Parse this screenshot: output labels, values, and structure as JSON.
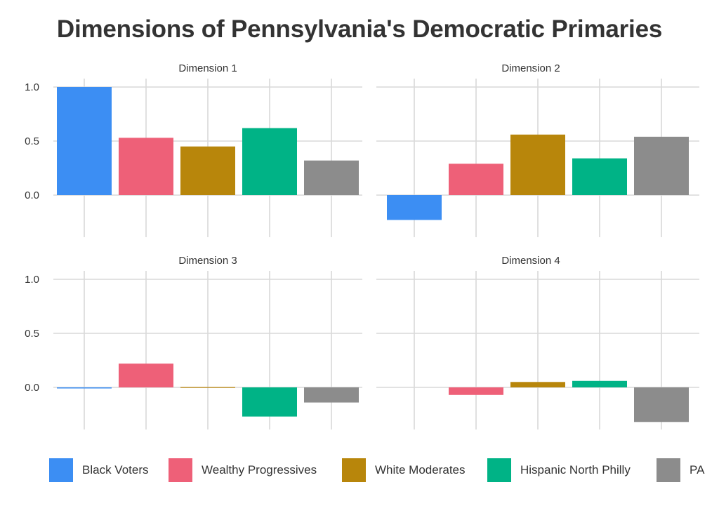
{
  "chart_data": {
    "type": "bar",
    "title": "Dimensions of Pennsylvania's Democratic Primaries",
    "xlabel": "",
    "ylabel": "",
    "ylim": [
      -0.39,
      1.0
    ],
    "yticks": [
      0.0,
      0.5,
      1.0
    ],
    "ytick_labels": [
      "0.0",
      "0.5",
      "1.0"
    ],
    "grid": true,
    "legend_position": "bottom",
    "categories": [
      "Black Voters",
      "Wealthy Progressives",
      "White Moderates",
      "Hispanic North Philly",
      "PA"
    ],
    "colors": [
      "#3c8ef3",
      "#ee6078",
      "#b8860b",
      "#00b386",
      "#8c8c8c"
    ],
    "facets": [
      {
        "name": "Dimension 1",
        "values": [
          1.0,
          0.53,
          0.45,
          0.62,
          0.32
        ]
      },
      {
        "name": "Dimension 2",
        "values": [
          -0.23,
          0.29,
          0.56,
          0.34,
          0.54
        ]
      },
      {
        "name": "Dimension 3",
        "values": [
          -0.01,
          0.22,
          0.003,
          -0.27,
          -0.14
        ]
      },
      {
        "name": "Dimension 4",
        "values": [
          0.0,
          -0.07,
          0.05,
          0.06,
          -0.32
        ]
      }
    ]
  }
}
